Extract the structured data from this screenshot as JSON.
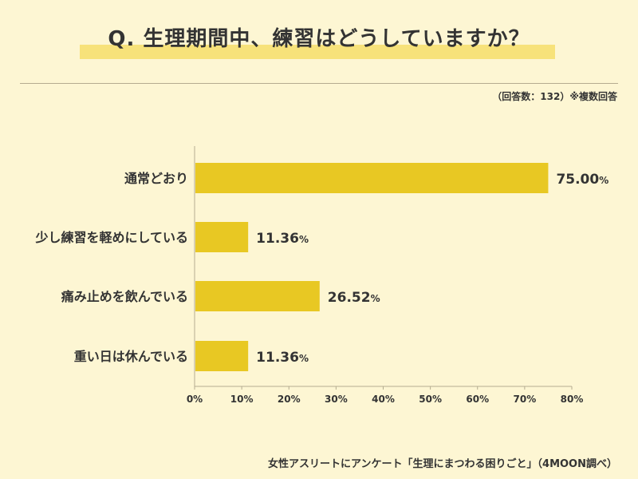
{
  "title": "Q. 生理期間中、練習はどうしていますか？",
  "note": "（回答数：132）※複数回答",
  "footer": "女性アスリートにアンケート「生理にまつわる困りごと」（4MOON調べ）",
  "colors": {
    "bar": "#e8c823",
    "highlight": "#f7e27a",
    "background": "#fdf6d3",
    "axis": "#b5ac90",
    "text": "#333333"
  },
  "chart_data": {
    "type": "bar",
    "orientation": "horizontal",
    "categories": [
      "通常どおり",
      "少し練習を軽めにしている",
      "痛み止めを飲んでいる",
      "重い日は休んでいる"
    ],
    "values": [
      75.0,
      11.36,
      26.52,
      11.36
    ],
    "value_labels": [
      "75.00",
      "11.36",
      "26.52",
      "11.36"
    ],
    "value_unit": "%",
    "xlim": [
      0,
      80
    ],
    "xticks": [
      "0%",
      "10%",
      "20%",
      "30%",
      "40%",
      "50%",
      "60%",
      "70%",
      "80%"
    ],
    "xtick_values": [
      0,
      10,
      20,
      30,
      40,
      50,
      60,
      70,
      80
    ],
    "grid": false,
    "legend": "none"
  }
}
